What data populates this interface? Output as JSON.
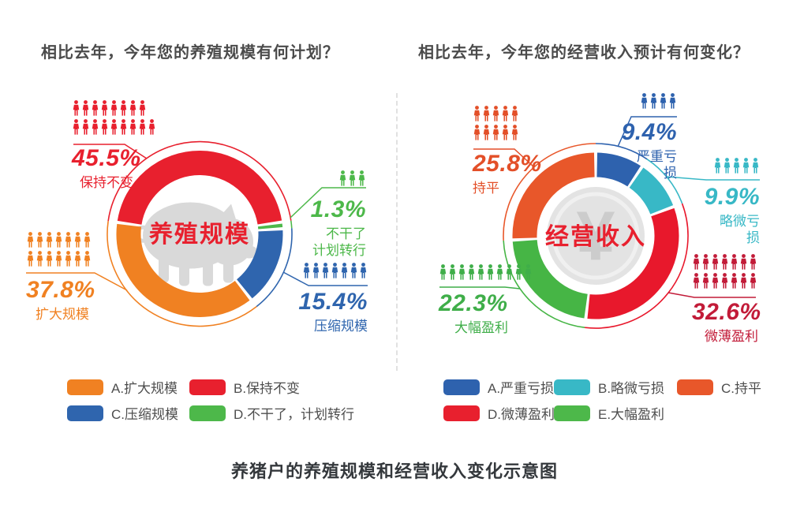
{
  "caption": "养猪户的养殖规模和经营收入变化示意图",
  "icon_unit": "person-icon",
  "chart_data": [
    {
      "type": "donut",
      "question": "相比去年，今年您的养殖规模有何计划？",
      "center_label": "养殖规模",
      "center_icon": "pig",
      "center_label_color": "#e8202e",
      "start_angle": 278,
      "segments": [
        {
          "name": "保持不变",
          "value": 45.5,
          "color": "#e8202e"
        },
        {
          "name": "不干了，计划转行",
          "value": 1.3,
          "color": "#4db84a"
        },
        {
          "name": "压缩规模",
          "value": 15.4,
          "color": "#2f65ae"
        },
        {
          "name": "扩大规模",
          "value": 37.8,
          "color": "#f08122"
        }
      ],
      "callouts": [
        {
          "pct": "45.5%",
          "name": "保持不变",
          "color": "#e8202e",
          "icon_rows": [
            8,
            9
          ]
        },
        {
          "pct": "37.8%",
          "name": "扩大规模",
          "color": "#f08122",
          "icon_rows": [
            7,
            7
          ]
        },
        {
          "pct": "1.3%",
          "name": "不干了\n计划转行",
          "color": "#4db84a",
          "icon_rows": [
            3
          ]
        },
        {
          "pct": "15.4%",
          "name": "压缩规模",
          "color": "#2f65ae",
          "icon_rows": [
            7
          ]
        }
      ],
      "legend": [
        {
          "label": "A.扩大规模",
          "color": "#f08122"
        },
        {
          "label": "B.保持不变",
          "color": "#e8202e"
        },
        {
          "label": "C.压缩规模",
          "color": "#2f65ae"
        },
        {
          "label": "D.不干了，计划转行",
          "color": "#4db84a"
        }
      ]
    },
    {
      "type": "donut",
      "question": "相比去年，今年您的经营收入预计有何变化？",
      "center_label": "经营收入",
      "center_icon": "yuan-coin",
      "center_label_color": "#e8202e",
      "start_angle": 0,
      "segments": [
        {
          "name": "严重亏损",
          "value": 9.4,
          "color": "#2e62ae"
        },
        {
          "name": "略微亏损",
          "value": 9.9,
          "color": "#38b8c6"
        },
        {
          "name": "微薄盈利",
          "value": 32.6,
          "color": "#e8182c"
        },
        {
          "name": "大幅盈利",
          "value": 22.3,
          "color": "#46b545"
        },
        {
          "name": "持平",
          "value": 25.8,
          "color": "#e8572a"
        }
      ],
      "callouts": [
        {
          "pct": "25.8%",
          "name": "持平",
          "color": "#e34f28",
          "icon_rows": [
            5,
            5
          ]
        },
        {
          "pct": "9.4%",
          "name": "严重亏损",
          "color": "#2e62ae",
          "icon_rows": [
            4
          ]
        },
        {
          "pct": "9.9%",
          "name": "略微亏损",
          "color": "#38b8c6",
          "icon_rows": [
            5
          ]
        },
        {
          "pct": "32.6%",
          "name": "微薄盈利",
          "color": "#c21b38",
          "icon_rows": [
            7,
            7
          ]
        },
        {
          "pct": "22.3%",
          "name": "大幅盈利",
          "color": "#3fae49",
          "icon_rows": [
            10
          ]
        }
      ],
      "legend": [
        {
          "label": "A.严重亏损",
          "color": "#2e62ae"
        },
        {
          "label": "B.略微亏损",
          "color": "#38b8c6"
        },
        {
          "label": "C.持平",
          "color": "#e8572a"
        },
        {
          "label": "D.微薄盈利",
          "color": "#e8202e"
        },
        {
          "label": "E.大幅盈利",
          "color": "#4db84a"
        }
      ]
    }
  ]
}
